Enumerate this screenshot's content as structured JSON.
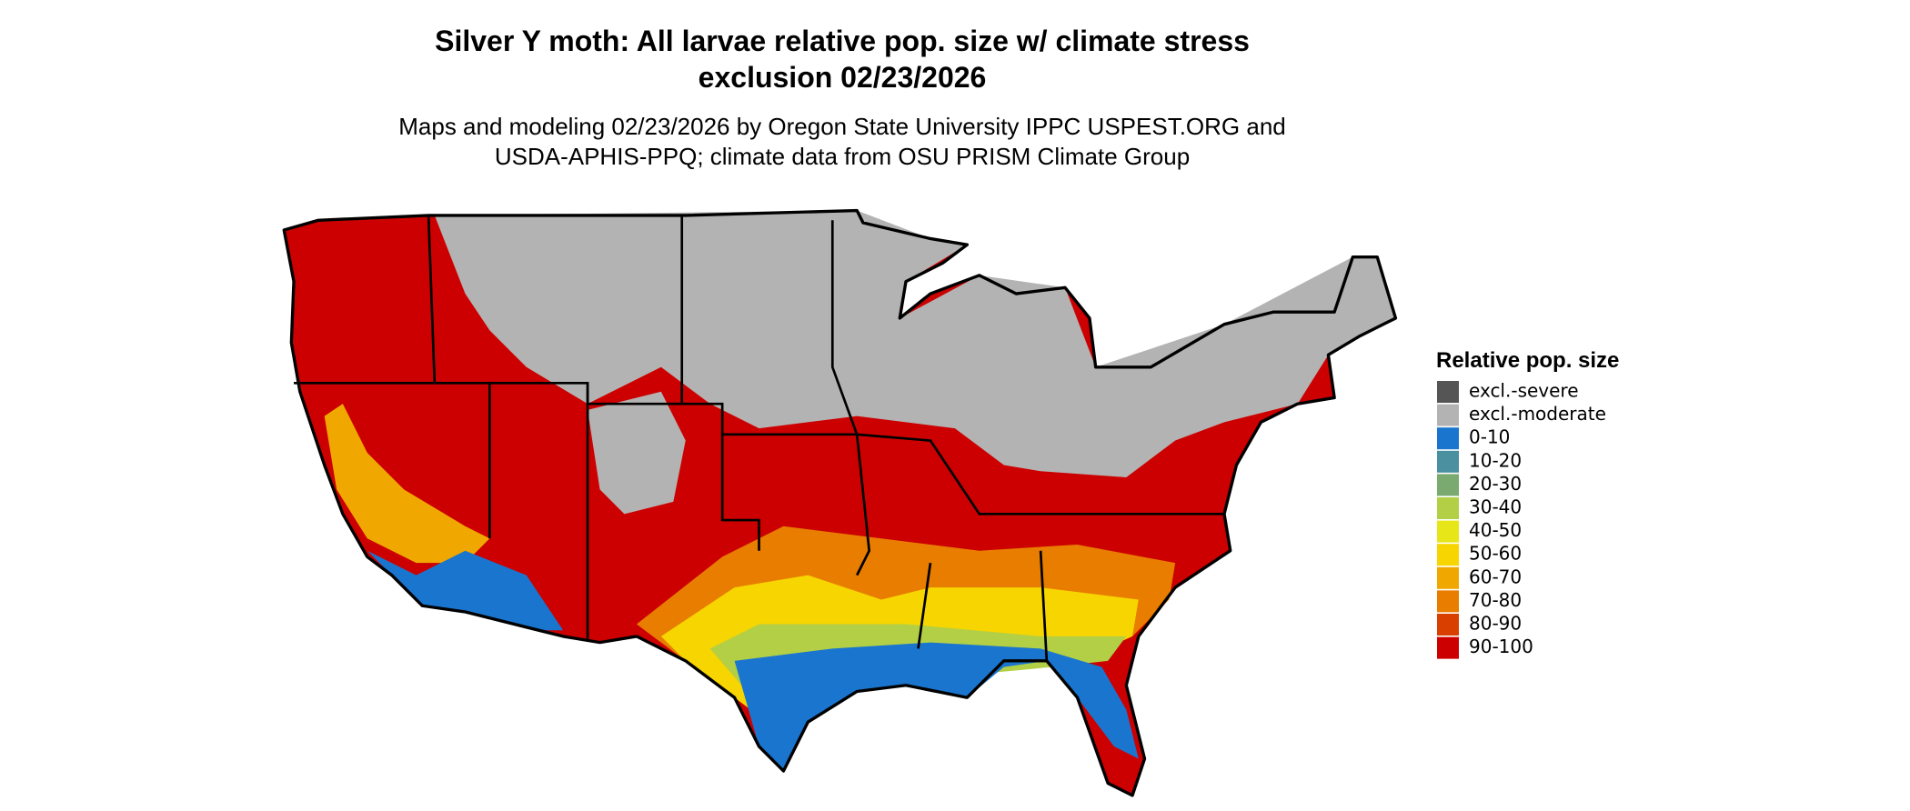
{
  "title": [
    "Silver Y moth: All larvae relative pop. size w/ climate stress",
    "exclusion 02/23/2026"
  ],
  "subtitle": [
    "Maps and modeling 02/23/2026 by Oregon State University IPPC USPEST.ORG and",
    "USDA-APHIS-PPQ; climate data from OSU PRISM Climate Group"
  ],
  "legend": {
    "title": "Relative pop. size",
    "items": [
      {
        "label": "excl.-severe",
        "color": "#555555"
      },
      {
        "label": "excl.-moderate",
        "color": "#b3b3b3"
      },
      {
        "label": "0-10",
        "color": "#1a75cf"
      },
      {
        "label": "10-20",
        "color": "#4a90a0"
      },
      {
        "label": "20-30",
        "color": "#7aaa70"
      },
      {
        "label": "30-40",
        "color": "#b3cf45"
      },
      {
        "label": "40-50",
        "color": "#e6e619"
      },
      {
        "label": "50-60",
        "color": "#f7d500"
      },
      {
        "label": "60-70",
        "color": "#f0a800"
      },
      {
        "label": "70-80",
        "color": "#e87d00"
      },
      {
        "label": "80-90",
        "color": "#d94000"
      },
      {
        "label": "90-100",
        "color": "#cc0000"
      }
    ]
  }
}
